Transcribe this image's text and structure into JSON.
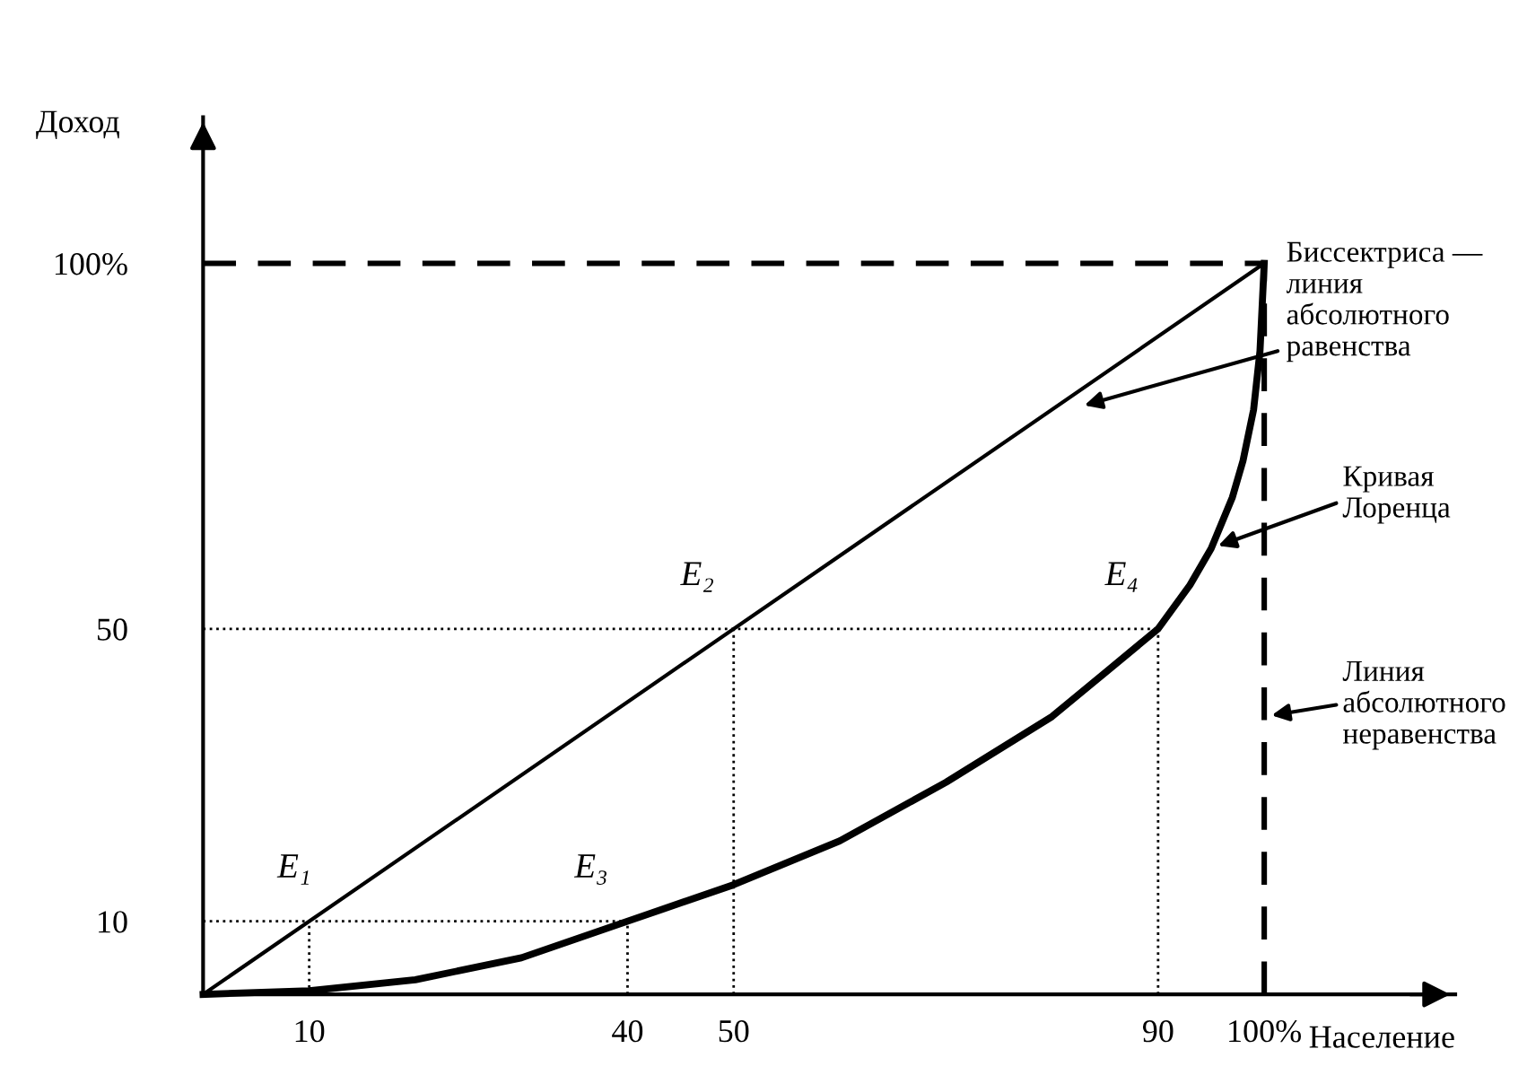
{
  "chart_data": {
    "type": "line",
    "xlabel": "Население",
    "ylabel": "Доход",
    "xlim": [
      0,
      118
    ],
    "ylim": [
      0,
      120
    ],
    "xticks": [
      10,
      40,
      50,
      90,
      {
        "value": 100,
        "label": "100%"
      }
    ],
    "yticks": [
      10,
      50,
      {
        "value": 100,
        "label": "100%"
      }
    ],
    "grid": false,
    "legend": false,
    "series": [
      {
        "x": [
          0,
          100
        ],
        "values": [
          0,
          100
        ],
        "color": "#000000",
        "line_style": "solid"
      },
      {
        "x": [
          0,
          10,
          20,
          30,
          40,
          50,
          60,
          70,
          80,
          85,
          90,
          93,
          95,
          97,
          98,
          99,
          99.6,
          100
        ],
        "values": [
          0,
          0.5,
          2,
          5,
          10,
          15,
          21,
          29,
          38,
          44,
          50,
          56,
          61,
          68,
          73,
          80,
          88,
          100
        ],
        "color": "#000000",
        "line_style": "solid"
      },
      {
        "x": [
          0,
          100
        ],
        "values": [
          100,
          100
        ],
        "color": "#000000",
        "line_style": "dashed"
      },
      {
        "x": [
          100,
          100
        ],
        "values": [
          0,
          100
        ],
        "color": "#000000",
        "line_style": "dashed"
      },
      {
        "x": [
          0,
          40
        ],
        "values": [
          10,
          10
        ],
        "color": "#000000",
        "line_style": "dotted"
      },
      {
        "x": [
          10,
          10
        ],
        "values": [
          0,
          10
        ],
        "color": "#000000",
        "line_style": "dotted"
      },
      {
        "x": [
          40,
          40
        ],
        "values": [
          0,
          10
        ],
        "color": "#000000",
        "line_style": "dotted"
      },
      {
        "x": [
          0,
          90
        ],
        "values": [
          50,
          50
        ],
        "color": "#000000",
        "line_style": "dotted"
      },
      {
        "x": [
          50,
          50
        ],
        "values": [
          0,
          50
        ],
        "color": "#000000",
        "line_style": "dotted"
      },
      {
        "x": [
          90,
          90
        ],
        "values": [
          0,
          50
        ],
        "color": "#000000",
        "line_style": "dotted"
      }
    ],
    "annotations": [
      {
        "text": "E₁",
        "x": 10,
        "y": 10
      },
      {
        "text": "E₂",
        "x": 50,
        "y": 50
      },
      {
        "text": "E₃",
        "x": 40,
        "y": 10
      },
      {
        "text": "E₄",
        "x": 90,
        "y": 50
      },
      "Биссектриса —\nлиния\nабсолютного\nравенства",
      {
        "text": "Кривая\nЛоренца",
        "x": 95,
        "y": 61
      },
      {
        "text": "Линия\nабсолютного\nнеравенства",
        "x": 100,
        "y": 38
      }
    ]
  }
}
